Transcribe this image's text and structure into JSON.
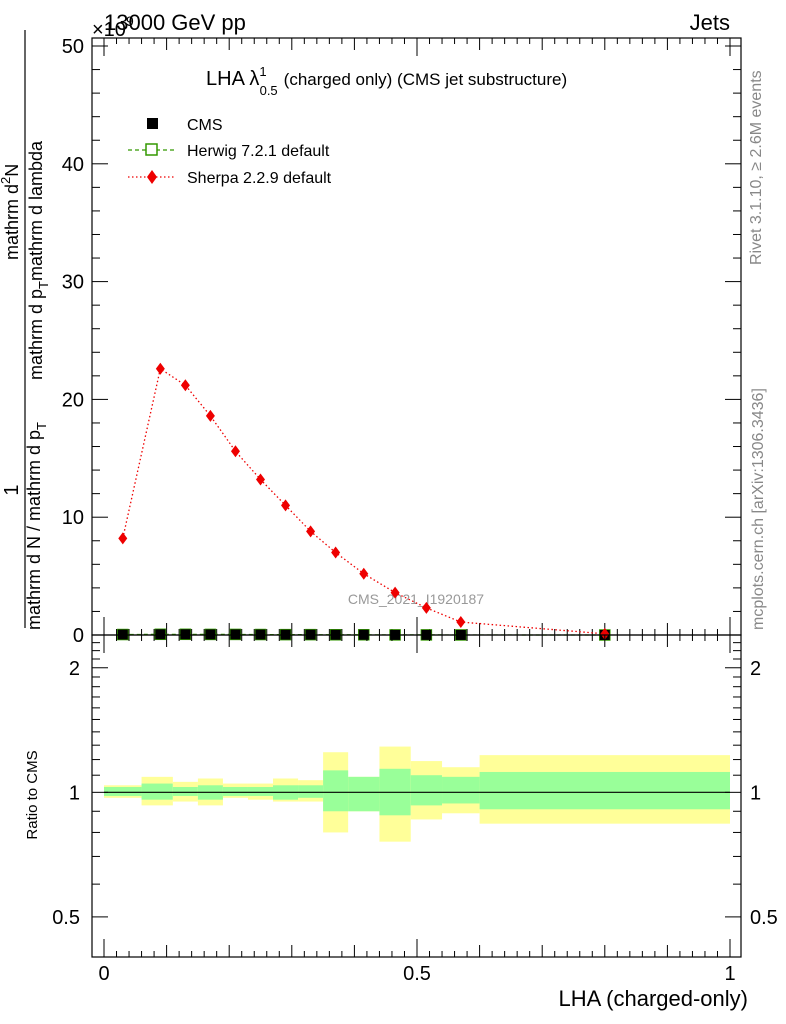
{
  "header": {
    "exp_label": "13000 GeV pp",
    "multiplier_label": "×10",
    "multiplier_exp": "9",
    "category_label": "Jets"
  },
  "side_labels": {
    "rivet": "Rivet 3.1.10, ≥ 2.6M events",
    "mcplots": "mcplots.cern.ch [arXiv:1306.3436]"
  },
  "main_plot": {
    "title_prefix": "LHA λ",
    "title_sup": "1",
    "title_sub": "0.5",
    "title_suffix": "(charged only) (CMS jet substructure)",
    "watermark": "CMS_2021_I1920187",
    "ylabel": {
      "one": "1",
      "denominator": "mathrm d N / mathrm d p",
      "denominator_sub": "T",
      "numerator_a": "mathrm d",
      "numerator_a_sup": "2",
      "numerator_b": "N",
      "denominator2_a": "mathrm d p",
      "denominator2_a_sub": "T",
      "denominator2_b": "mathrm d lambda"
    },
    "yticks": [
      "0",
      "10",
      "20",
      "30",
      "40",
      "50"
    ]
  },
  "ratio_plot": {
    "ylabel": "Ratio to CMS",
    "yticks": [
      "0.5",
      "1",
      "2"
    ]
  },
  "xlabel": "LHA (charged-only)",
  "xticks": [
    "0",
    "0.5",
    "1"
  ],
  "legend": [
    {
      "label": "CMS",
      "marker": "filled-square",
      "color": "#000000"
    },
    {
      "label": "Herwig 7.2.1 default",
      "marker": "open-square-dashed",
      "color": "#339900"
    },
    {
      "label": "Sherpa 2.2.9 default",
      "marker": "diamond-dotted",
      "color": "#ee0000"
    }
  ],
  "chart_data": [
    {
      "type": "scatter",
      "panel": "main",
      "x_range": [
        0,
        1
      ],
      "y_range": [
        0,
        50
      ],
      "y_scale_factor": "1e9",
      "series": [
        {
          "name": "CMS",
          "x": [
            0.03,
            0.09,
            0.13,
            0.17,
            0.21,
            0.25,
            0.29,
            0.33,
            0.37,
            0.415,
            0.465,
            0.515,
            0.57,
            0.8
          ],
          "y": [
            0.04,
            0.06,
            0.06,
            0.05,
            0.05,
            0.04,
            0.03,
            0.03,
            0.02,
            0.02,
            0.01,
            0.01,
            0.005,
            0.0005
          ]
        },
        {
          "name": "Herwig 7.2.1 default",
          "x": [
            0.03,
            0.09,
            0.13,
            0.17,
            0.21,
            0.25,
            0.29,
            0.33,
            0.37,
            0.415,
            0.465,
            0.515,
            0.57,
            0.8
          ],
          "y": [
            0.04,
            0.06,
            0.06,
            0.05,
            0.05,
            0.04,
            0.03,
            0.03,
            0.02,
            0.02,
            0.01,
            0.01,
            0.005,
            0.0005
          ]
        },
        {
          "name": "Sherpa 2.2.9 default",
          "x": [
            0.03,
            0.09,
            0.13,
            0.17,
            0.21,
            0.25,
            0.29,
            0.33,
            0.37,
            0.415,
            0.465,
            0.515,
            0.57,
            0.8
          ],
          "y": [
            8.2,
            22.6,
            21.2,
            18.6,
            15.6,
            13.2,
            11.0,
            8.8,
            7.0,
            5.2,
            3.6,
            2.3,
            1.1,
            0.1
          ]
        }
      ]
    },
    {
      "type": "area",
      "panel": "ratio",
      "x_range": [
        0,
        1
      ],
      "y_range": [
        0.4,
        2.4
      ],
      "y_scale": "log",
      "reference_line": 1.0,
      "bands": [
        {
          "name": "CMS stat uncertainty",
          "color": "#99ff99"
        },
        {
          "name": "CMS total uncertainty",
          "color": "#ffff99"
        }
      ],
      "bins": [
        {
          "x0": 0.0,
          "x1": 0.06,
          "inner": [
            0.98,
            1.03
          ],
          "outer": [
            0.97,
            1.04
          ]
        },
        {
          "x0": 0.06,
          "x1": 0.11,
          "inner": [
            0.96,
            1.05
          ],
          "outer": [
            0.93,
            1.09
          ]
        },
        {
          "x0": 0.11,
          "x1": 0.15,
          "inner": [
            0.98,
            1.03
          ],
          "outer": [
            0.95,
            1.06
          ]
        },
        {
          "x0": 0.15,
          "x1": 0.19,
          "inner": [
            0.96,
            1.04
          ],
          "outer": [
            0.93,
            1.08
          ]
        },
        {
          "x0": 0.19,
          "x1": 0.23,
          "inner": [
            0.98,
            1.03
          ],
          "outer": [
            0.97,
            1.05
          ]
        },
        {
          "x0": 0.23,
          "x1": 0.27,
          "inner": [
            0.98,
            1.03
          ],
          "outer": [
            0.96,
            1.05
          ]
        },
        {
          "x0": 0.27,
          "x1": 0.31,
          "inner": [
            0.96,
            1.04
          ],
          "outer": [
            0.95,
            1.08
          ]
        },
        {
          "x0": 0.31,
          "x1": 0.35,
          "inner": [
            0.97,
            1.04
          ],
          "outer": [
            0.95,
            1.07
          ]
        },
        {
          "x0": 0.35,
          "x1": 0.39,
          "inner": [
            0.9,
            1.13
          ],
          "outer": [
            0.8,
            1.25
          ]
        },
        {
          "x0": 0.39,
          "x1": 0.44,
          "inner": [
            0.9,
            1.09
          ],
          "outer": [
            0.9,
            1.09
          ]
        },
        {
          "x0": 0.44,
          "x1": 0.49,
          "inner": [
            0.88,
            1.14
          ],
          "outer": [
            0.76,
            1.29
          ]
        },
        {
          "x0": 0.49,
          "x1": 0.54,
          "inner": [
            0.93,
            1.1
          ],
          "outer": [
            0.86,
            1.19
          ]
        },
        {
          "x0": 0.54,
          "x1": 0.6,
          "inner": [
            0.94,
            1.09
          ],
          "outer": [
            0.89,
            1.15
          ]
        },
        {
          "x0": 0.6,
          "x1": 1.0,
          "inner": [
            0.91,
            1.12
          ],
          "outer": [
            0.84,
            1.23
          ]
        }
      ]
    }
  ]
}
